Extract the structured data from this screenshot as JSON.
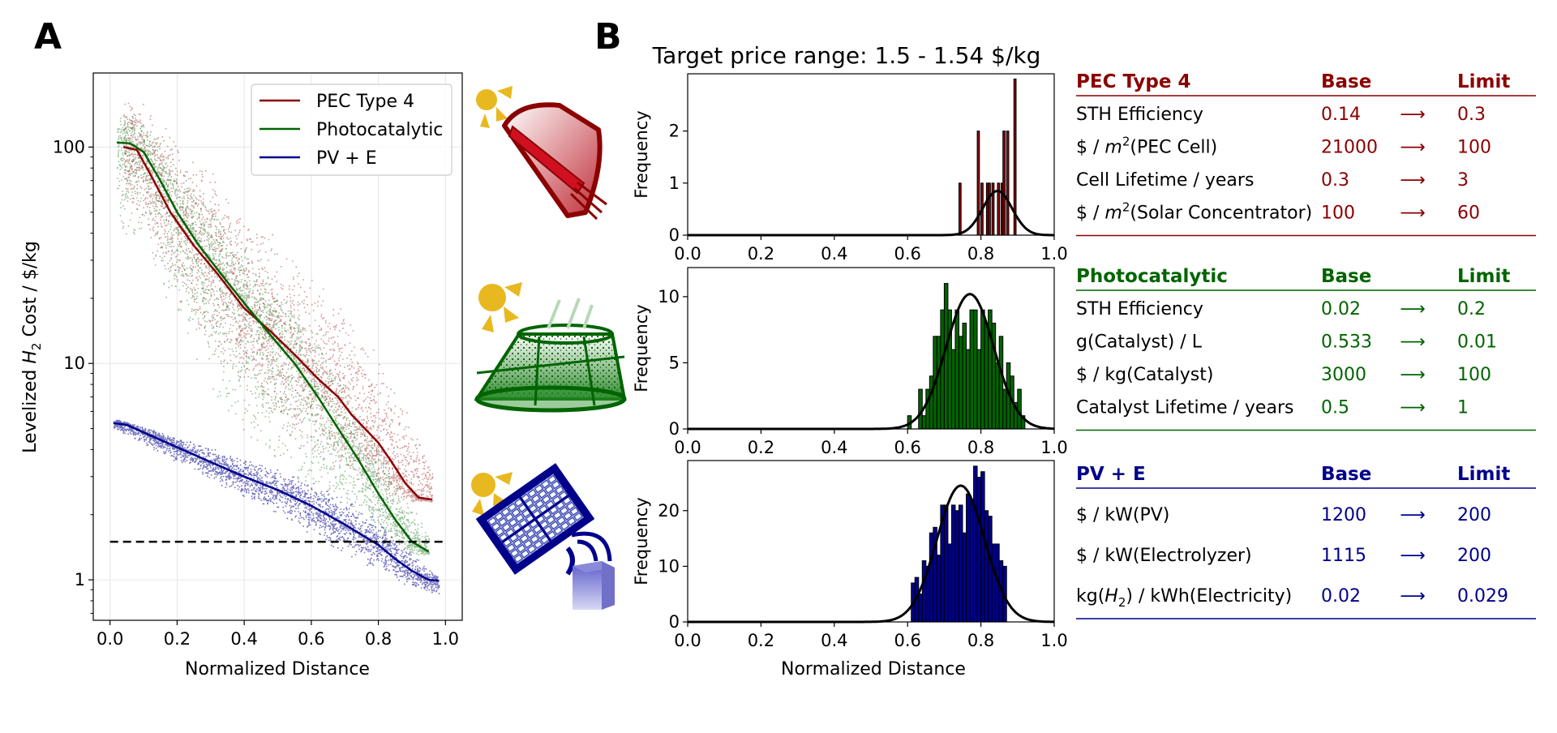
{
  "panel_labels": {
    "a": "A",
    "b": "B"
  },
  "colors": {
    "pec": "#8b0000",
    "photo": "#006400",
    "pv": "#00008b",
    "sun": "#e8b820",
    "black": "#000000"
  },
  "chart_data": [
    {
      "type": "scatter",
      "panel": "A",
      "title": "",
      "xlabel": "Normalized Distance",
      "ylabel_pre": "Levelized ",
      "ylabel_h": "H",
      "ylabel_sub": "2",
      "ylabel_post": " Cost / $/kg",
      "yscale": "log",
      "xlim": [
        -0.05,
        1.05
      ],
      "ylim": [
        0.65,
        220
      ],
      "grid": true,
      "legend_position": "top-right",
      "xticks": [
        0.0,
        0.2,
        0.4,
        0.6,
        0.8,
        1.0
      ],
      "xtick_labels": [
        "0.0",
        "0.2",
        "0.4",
        "0.6",
        "0.8",
        "1.0"
      ],
      "yticks": [
        1,
        10,
        100
      ],
      "ytick_labels": [
        "1",
        "10",
        "100"
      ],
      "target_line_y": 1.5,
      "series": [
        {
          "name": "PEC Type 4",
          "color": "#8b0000",
          "x": [
            0.04,
            0.08,
            0.12,
            0.18,
            0.25,
            0.32,
            0.4,
            0.48,
            0.55,
            0.62,
            0.68,
            0.72,
            0.76,
            0.8,
            0.84,
            0.88,
            0.92,
            0.96
          ],
          "y": [
            100,
            97,
            75,
            50,
            35,
            26,
            18,
            14,
            11,
            8.5,
            7.0,
            5.8,
            5.0,
            4.3,
            3.5,
            2.8,
            2.4,
            2.35
          ],
          "scatter_upper": [
            180,
            170,
            150,
            120,
            95,
            75,
            55,
            42,
            32,
            25,
            20,
            17,
            14,
            11,
            8.5,
            6.5,
            4.8,
            3.4
          ],
          "scatter_lower": [
            55,
            45,
            35,
            22,
            14,
            10,
            7,
            5.2,
            4.3,
            3.6,
            3.2,
            2.9,
            2.7,
            2.5,
            2.4,
            2.3,
            2.3,
            2.3
          ]
        },
        {
          "name": "Photocatalytic",
          "color": "#006400",
          "x": [
            0.02,
            0.06,
            0.1,
            0.15,
            0.2,
            0.26,
            0.33,
            0.4,
            0.47,
            0.55,
            0.62,
            0.68,
            0.74,
            0.8,
            0.85,
            0.9,
            0.95
          ],
          "y": [
            105,
            104,
            95,
            70,
            50,
            36,
            26,
            19,
            14,
            10,
            7,
            5,
            3.6,
            2.5,
            1.9,
            1.5,
            1.35
          ],
          "scatter_upper": [
            140,
            150,
            130,
            110,
            85,
            65,
            48,
            36,
            27,
            20,
            14,
            9.5,
            6.5,
            4.5,
            3.2,
            2.2,
            1.6
          ],
          "scatter_lower": [
            40,
            35,
            28,
            20,
            14,
            9,
            6,
            4.5,
            3.5,
            2.8,
            2.2,
            1.9,
            1.7,
            1.5,
            1.4,
            1.3,
            1.3
          ]
        },
        {
          "name": "PV + E",
          "color": "#00008b",
          "x": [
            0.01,
            0.05,
            0.1,
            0.2,
            0.3,
            0.4,
            0.5,
            0.6,
            0.7,
            0.8,
            0.85,
            0.9,
            0.95,
            0.98
          ],
          "y": [
            5.3,
            5.2,
            4.8,
            4.1,
            3.5,
            3.0,
            2.6,
            2.2,
            1.8,
            1.45,
            1.25,
            1.1,
            1.0,
            0.99
          ],
          "scatter_upper": [
            5.6,
            5.4,
            5.1,
            4.6,
            4.1,
            3.7,
            3.3,
            2.9,
            2.4,
            1.9,
            1.6,
            1.35,
            1.15,
            1.05
          ],
          "scatter_lower": [
            5.0,
            4.7,
            4.2,
            3.5,
            2.9,
            2.4,
            2.0,
            1.6,
            1.3,
            1.1,
            1.0,
            0.92,
            0.88,
            0.85
          ]
        }
      ]
    },
    {
      "type": "bar",
      "panel": "B-top",
      "title": "Target price range: 1.5 - 1.54 $/kg",
      "xlabel": "",
      "ylabel": "Frequency",
      "xlim": [
        0,
        1
      ],
      "ylim": [
        0,
        3.1
      ],
      "xticks": [
        0.0,
        0.2,
        0.4,
        0.6,
        0.8,
        1.0
      ],
      "xtick_labels": [
        "0.0",
        "0.2",
        "0.4",
        "0.6",
        "0.8",
        "1.0"
      ],
      "yticks": [
        0,
        1,
        2
      ],
      "ytick_labels": [
        "0",
        "1",
        "2"
      ],
      "bar_color": "#8b0000",
      "bin_width": 0.006,
      "bin_starts": [
        0.74,
        0.79,
        0.8,
        0.815,
        0.82,
        0.83,
        0.845,
        0.855,
        0.86,
        0.87,
        0.89
      ],
      "values": [
        1,
        2,
        1,
        1,
        1,
        1,
        1,
        1,
        2,
        2,
        3
      ],
      "fit": {
        "mean": 0.845,
        "std": 0.04,
        "peak": 0.85
      }
    },
    {
      "type": "bar",
      "panel": "B-middle",
      "title": "",
      "xlabel": "",
      "ylabel": "Frequency",
      "xlim": [
        0,
        1
      ],
      "ylim": [
        0,
        12.2
      ],
      "xticks": [
        0.0,
        0.2,
        0.4,
        0.6,
        0.8,
        1.0
      ],
      "xtick_labels": [
        "0.0",
        "0.2",
        "0.4",
        "0.6",
        "0.8",
        "1.0"
      ],
      "yticks": [
        0,
        5,
        10
      ],
      "ytick_labels": [
        "0",
        "5",
        "10"
      ],
      "bar_color": "#006400",
      "bin_width": 0.01,
      "bin_starts": [
        0.6,
        0.63,
        0.64,
        0.65,
        0.66,
        0.67,
        0.68,
        0.69,
        0.7,
        0.71,
        0.72,
        0.73,
        0.74,
        0.75,
        0.76,
        0.77,
        0.78,
        0.79,
        0.8,
        0.81,
        0.82,
        0.83,
        0.84,
        0.85,
        0.86,
        0.87,
        0.88,
        0.89,
        0.9,
        0.91
      ],
      "values": [
        1,
        3,
        1,
        3,
        4,
        7,
        7,
        9,
        11,
        9,
        6,
        9,
        7,
        8,
        6,
        9,
        9,
        6,
        9,
        8,
        9,
        8,
        5,
        7,
        3,
        5,
        4,
        2,
        3,
        1
      ],
      "fit": {
        "mean": 0.77,
        "std": 0.065,
        "peak": 10.2
      }
    },
    {
      "type": "bar",
      "panel": "B-bottom",
      "title": "",
      "xlabel": "Normalized Distance",
      "ylabel": "Frequency",
      "xlim": [
        0,
        1
      ],
      "ylim": [
        0,
        29
      ],
      "xticks": [
        0.0,
        0.2,
        0.4,
        0.6,
        0.8,
        1.0
      ],
      "xtick_labels": [
        "0.0",
        "0.2",
        "0.4",
        "0.6",
        "0.8",
        "1.0"
      ],
      "yticks": [
        0,
        10,
        20
      ],
      "ytick_labels": [
        "0",
        "10",
        "20"
      ],
      "bar_color": "#00008b",
      "bin_width": 0.01,
      "bin_starts": [
        0.61,
        0.62,
        0.63,
        0.64,
        0.65,
        0.66,
        0.67,
        0.68,
        0.69,
        0.7,
        0.71,
        0.72,
        0.73,
        0.74,
        0.75,
        0.76,
        0.77,
        0.78,
        0.79,
        0.8,
        0.81,
        0.82,
        0.83,
        0.84,
        0.85,
        0.86
      ],
      "values": [
        7,
        8,
        5,
        11,
        10,
        16,
        17,
        12,
        21,
        21,
        14,
        21,
        20,
        21,
        16,
        23,
        22,
        28,
        26,
        27,
        20,
        19,
        14,
        14,
        11,
        10
      ],
      "fit": {
        "mean": 0.745,
        "std": 0.065,
        "peak": 24.5
      }
    }
  ],
  "tables": [
    {
      "title": "PEC Type 4",
      "base_header": "Base",
      "limit_header": "Limit",
      "color": "#8b0000",
      "rows": [
        {
          "label": "STH Efficiency",
          "base": "0.14",
          "arrow": "⟶",
          "limit": "0.3"
        },
        {
          "label_pre": "$ / ",
          "label_m": "m",
          "label_sup": "2",
          "label_post": "(PEC Cell)",
          "base": "21000",
          "arrow": "⟶",
          "limit": "100"
        },
        {
          "label": "Cell Lifetime / years",
          "base": "0.3",
          "arrow": "⟶",
          "limit": "3"
        },
        {
          "label_pre": "$ / ",
          "label_m": "m",
          "label_sup": "2",
          "label_post": "(Solar Concentrator)",
          "base": "100",
          "arrow": "⟶",
          "limit": "60"
        }
      ]
    },
    {
      "title": "Photocatalytic",
      "base_header": "Base",
      "limit_header": "Limit",
      "color": "#006400",
      "rows": [
        {
          "label": "STH Efficiency",
          "base": "0.02",
          "arrow": "⟶",
          "limit": "0.2"
        },
        {
          "label": "g(Catalyst) / L",
          "base": "0.533",
          "arrow": "⟶",
          "limit": "0.01"
        },
        {
          "label": "$ / kg(Catalyst)",
          "base": "3000",
          "arrow": "⟶",
          "limit": "100"
        },
        {
          "label": "Catalyst Lifetime / years",
          "base": "0.5",
          "arrow": "⟶",
          "limit": "1"
        }
      ]
    },
    {
      "title": "PV + E",
      "base_header": "Base",
      "limit_header": "Limit",
      "color": "#00008b",
      "rows": [
        {
          "label": "$ / kW(PV)",
          "base": "1200",
          "arrow": "⟶",
          "limit": "200"
        },
        {
          "label": "$ / kW(Electrolyzer)",
          "base": "1115",
          "arrow": "⟶",
          "limit": "200"
        },
        {
          "label_pre": "kg(",
          "label_m": "H",
          "label_sub": "2",
          "label_post": ") / kWh(Electricity)",
          "base": "0.02",
          "arrow": "⟶",
          "limit": "0.029"
        }
      ]
    }
  ],
  "icons": [
    {
      "name": "pec-concentrator-icon"
    },
    {
      "name": "photocatalytic-reactor-icon"
    },
    {
      "name": "solar-panel-electrolyzer-icon"
    }
  ]
}
